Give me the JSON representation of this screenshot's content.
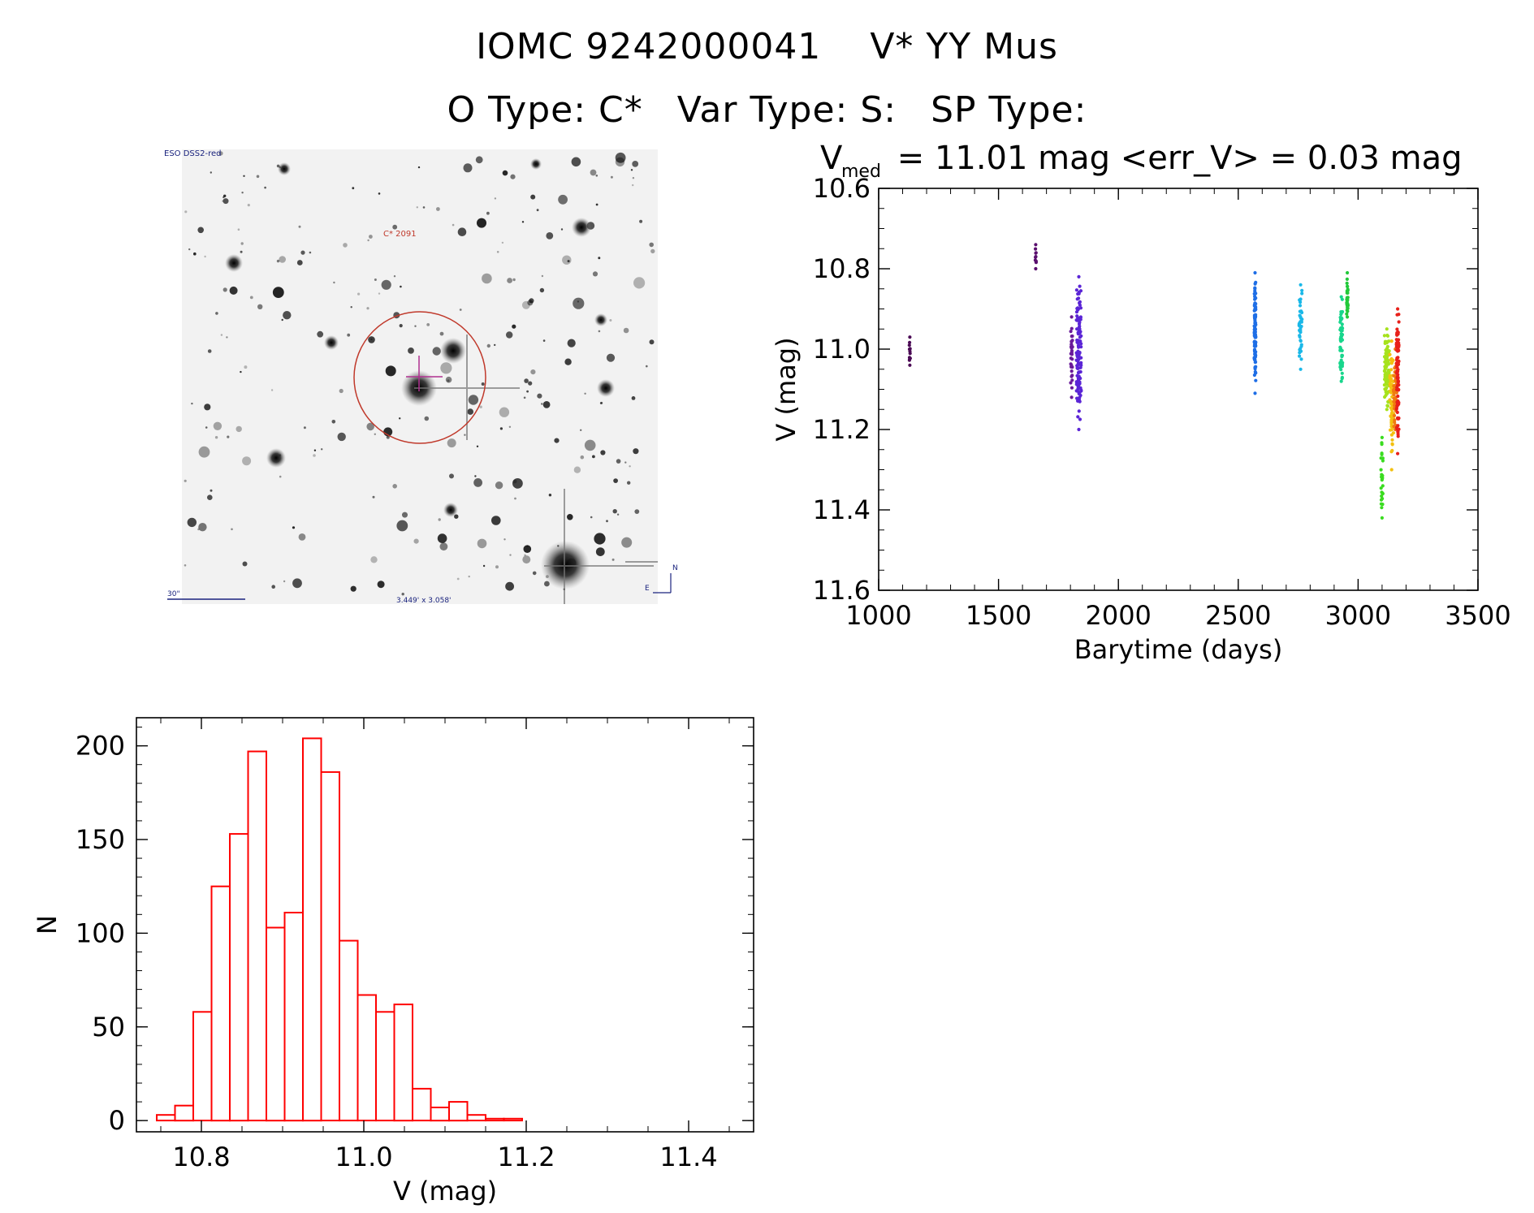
{
  "header": {
    "id_label": "IOMC 9242000041",
    "star_name": "V* YY Mus",
    "otype": "O Type: C*",
    "vartype": "Var Type: S:",
    "sptype": "SP Type:"
  },
  "finder": {
    "survey_label": "ESO DSS2-red",
    "object_label": "C* 2091",
    "scale_label": "30\"",
    "field_label": "3.449' x 3.058'",
    "compass_n": "N",
    "compass_e": "E"
  },
  "colors": {
    "histogram": "#ff0000",
    "circle": "#c0392b",
    "axes": "#000000"
  },
  "chart_data": [
    {
      "type": "scatter",
      "title_main": "V",
      "title_sub": "med",
      "title_rest": " = 11.01 mag <err_V> = 0.03 mag",
      "xlabel": "Barytime (days)",
      "ylabel": "V (mag)",
      "xlim": [
        1000,
        3500
      ],
      "ylim": [
        11.6,
        10.6
      ],
      "xticks": [
        "1000",
        "1500",
        "2000",
        "2500",
        "3000",
        "3500"
      ],
      "yticks": [
        "10.6",
        "10.8",
        "11.0",
        "11.2",
        "11.4",
        "11.6"
      ],
      "clusters": [
        {
          "x": 1130,
          "width": 4,
          "ymin": 10.97,
          "ymax": 11.04,
          "n": 10,
          "color": "#4b0a55"
        },
        {
          "x": 1655,
          "width": 4,
          "ymin": 10.74,
          "ymax": 10.8,
          "n": 8,
          "color": "#5a0f6e"
        },
        {
          "x": 1805,
          "width": 8,
          "ymin": 10.92,
          "ymax": 11.12,
          "n": 30,
          "color": "#6a1b9a"
        },
        {
          "x": 1835,
          "width": 20,
          "ymin": 10.82,
          "ymax": 11.2,
          "n": 120,
          "color": "#5b25d6"
        },
        {
          "x": 2570,
          "width": 6,
          "ymin": 10.81,
          "ymax": 11.11,
          "n": 110,
          "color": "#1e6ee6"
        },
        {
          "x": 2760,
          "width": 12,
          "ymin": 10.84,
          "ymax": 11.05,
          "n": 40,
          "color": "#1ab8e8"
        },
        {
          "x": 2930,
          "width": 10,
          "ymin": 10.87,
          "ymax": 11.08,
          "n": 60,
          "color": "#18d68c"
        },
        {
          "x": 2955,
          "width": 6,
          "ymin": 10.81,
          "ymax": 10.92,
          "n": 30,
          "color": "#22c93a"
        },
        {
          "x": 3100,
          "width": 10,
          "ymin": 11.22,
          "ymax": 11.42,
          "n": 25,
          "color": "#3adc20"
        },
        {
          "x": 3120,
          "width": 20,
          "ymin": 10.95,
          "ymax": 11.15,
          "n": 80,
          "color": "#a6e21c"
        },
        {
          "x": 3140,
          "width": 16,
          "ymin": 10.98,
          "ymax": 11.3,
          "n": 60,
          "color": "#f3c010"
        },
        {
          "x": 3155,
          "width": 14,
          "ymin": 11.0,
          "ymax": 11.2,
          "n": 60,
          "color": "#f07a10"
        },
        {
          "x": 3165,
          "width": 10,
          "ymin": 10.9,
          "ymax": 11.26,
          "n": 90,
          "color": "#e8201a"
        }
      ]
    },
    {
      "type": "bar",
      "xlabel": "V (mag)",
      "ylabel": "N",
      "xlim": [
        10.72,
        11.48
      ],
      "ylim": [
        -6,
        215
      ],
      "xticks": [
        "10.8",
        "11.0",
        "11.2",
        "11.4"
      ],
      "yticks": [
        "0",
        "50",
        "100",
        "150",
        "200"
      ],
      "bin_width": 0.0225,
      "bin_starts": [
        10.745,
        10.7675,
        10.79,
        10.8125,
        10.835,
        10.8575,
        10.88,
        10.9025,
        10.925,
        10.9475,
        10.97,
        10.9925,
        11.015,
        11.0375,
        11.06,
        11.0825,
        11.105,
        11.1275,
        11.15,
        11.1725,
        11.195,
        11.2175,
        11.24,
        11.2625,
        11.285,
        11.3075,
        11.33,
        11.3525,
        11.375,
        11.3975
      ],
      "values": [
        3,
        8,
        58,
        125,
        153,
        197,
        103,
        111,
        204,
        186,
        96,
        67,
        58,
        62,
        17,
        7,
        10,
        3,
        1,
        1,
        0,
        0,
        0,
        0,
        0,
        0,
        0,
        0,
        0,
        0
      ]
    }
  ]
}
